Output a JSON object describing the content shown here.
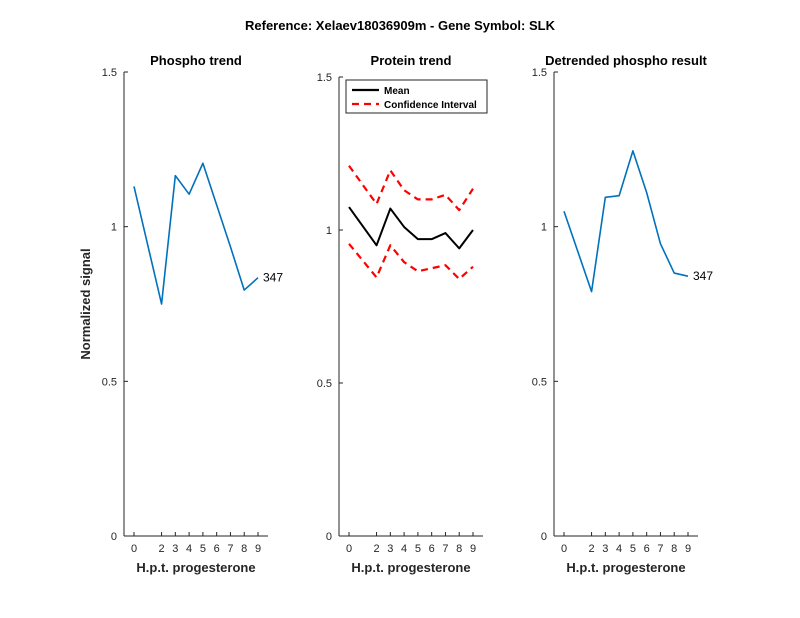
{
  "figure_title": "Reference:  Xelaev18036909m - Gene Symbol:  SLK",
  "chart_data": [
    {
      "type": "line",
      "title": "Phospho trend",
      "xlabel": "H.p.t. progesterone",
      "ylabel": "Normalized signal",
      "x": [
        0,
        2,
        3,
        4,
        5,
        6,
        7,
        8,
        9
      ],
      "x_tick_labels": [
        "0",
        "2",
        "3",
        "4",
        "5",
        "6",
        "7",
        "8",
        "9"
      ],
      "ylim": [
        0,
        1.5
      ],
      "y_ticks": [
        0,
        0.5,
        1,
        1.5
      ],
      "y_tick_labels": [
        "0",
        "0.5",
        "1",
        "1.5"
      ],
      "series": [
        {
          "values": [
            1.13,
            0.75,
            1.165,
            1.105,
            1.205,
            1.07,
            0.935,
            0.795,
            0.835
          ],
          "color": "#0072BD",
          "dash": "solid"
        }
      ],
      "end_label": "347"
    },
    {
      "type": "line",
      "title": "Protein trend",
      "xlabel": "H.p.t. progesterone",
      "ylabel": "",
      "x": [
        0,
        2,
        3,
        4,
        5,
        6,
        7,
        8,
        9
      ],
      "x_tick_labels": [
        "0",
        "2",
        "3",
        "4",
        "5",
        "6",
        "7",
        "8",
        "9"
      ],
      "ylim": [
        0,
        1.5
      ],
      "y_ticks": [
        0,
        0.5,
        1,
        1.5
      ],
      "y_tick_labels": [
        "0",
        "0.5",
        "1",
        "1.5"
      ],
      "legend": {
        "position": "top-left",
        "entries": [
          "Mean",
          "Confidence Interval"
        ]
      },
      "series": [
        {
          "name": "Mean",
          "values": [
            1.075,
            0.95,
            1.07,
            1.01,
            0.97,
            0.97,
            0.99,
            0.94,
            1.0
          ],
          "color": "#000000",
          "dash": "solid"
        },
        {
          "name": "Confidence Interval",
          "values": [
            1.21,
            1.085,
            1.195,
            1.13,
            1.1,
            1.1,
            1.115,
            1.065,
            1.135
          ],
          "color": "#FF0000",
          "dash": "dashed"
        },
        {
          "values": [
            0.955,
            0.845,
            0.95,
            0.895,
            0.865,
            0.875,
            0.885,
            0.84,
            0.88
          ],
          "color": "#FF0000",
          "dash": "dashed"
        }
      ]
    },
    {
      "type": "line",
      "title": "Detrended phospho result",
      "xlabel": "H.p.t. progesterone",
      "ylabel": "",
      "x": [
        0,
        2,
        3,
        4,
        5,
        6,
        7,
        8,
        9
      ],
      "x_tick_labels": [
        "0",
        "2",
        "3",
        "4",
        "5",
        "6",
        "7",
        "8",
        "9"
      ],
      "ylim": [
        0,
        1.5
      ],
      "y_ticks": [
        0,
        0.5,
        1,
        1.5
      ],
      "y_tick_labels": [
        "0",
        "0.5",
        "1",
        "1.5"
      ],
      "series": [
        {
          "values": [
            1.05,
            0.79,
            1.095,
            1.1,
            1.245,
            1.11,
            0.945,
            0.85,
            0.84
          ],
          "color": "#0072BD",
          "dash": "solid"
        }
      ],
      "end_label": "347"
    }
  ]
}
